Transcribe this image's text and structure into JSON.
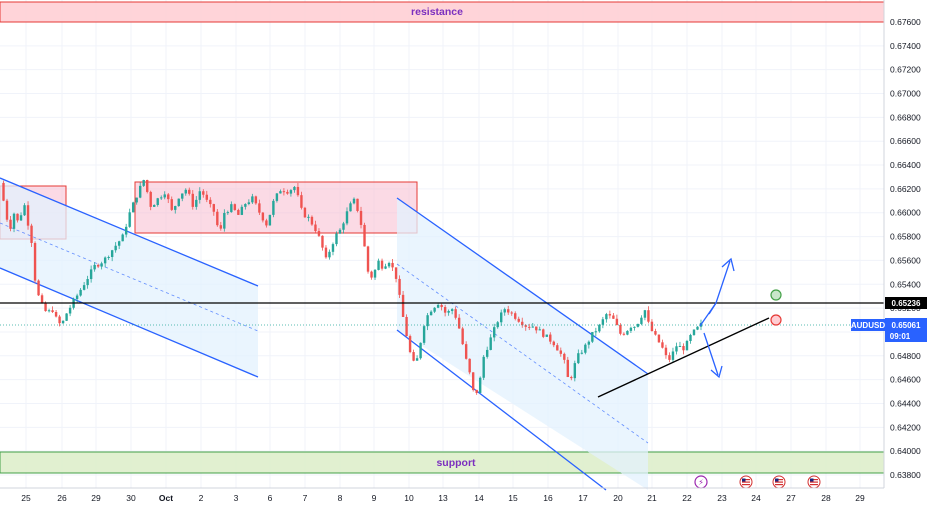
{
  "chart_data": {
    "type": "candlestick",
    "symbol": "AUDUSD",
    "y_ticks": [
      "0.67600",
      "0.67400",
      "0.67200",
      "0.67000",
      "0.66800",
      "0.66600",
      "0.66400",
      "0.66200",
      "0.66000",
      "0.65800",
      "0.65600",
      "0.65400",
      "0.65200",
      "0.65000",
      "0.64800",
      "0.64600",
      "0.64400",
      "0.64200",
      "0.64000",
      "0.63800"
    ],
    "ylim": [
      0.6375,
      0.6775
    ],
    "x_ticks": [
      "25",
      "26",
      "29",
      "30",
      "Oct",
      "2",
      "3",
      "6",
      "7",
      "8",
      "9",
      "10",
      "13",
      "14",
      "15",
      "16",
      "17",
      "20",
      "21",
      "22",
      "23",
      "24",
      "27",
      "28",
      "29"
    ],
    "price_path": [
      [
        24.7,
        0.6625
      ],
      [
        24.9,
        0.6605
      ],
      [
        25.1,
        0.6585
      ],
      [
        25.3,
        0.66
      ],
      [
        25.5,
        0.659
      ],
      [
        25.7,
        0.661
      ],
      [
        25.9,
        0.659
      ],
      [
        26.1,
        0.657
      ],
      [
        26.2,
        0.654
      ],
      [
        26.4,
        0.6525
      ],
      [
        26.7,
        0.6515
      ],
      [
        26.9,
        0.652
      ],
      [
        27.1,
        0.651
      ],
      [
        27.3,
        0.6505
      ],
      [
        27.5,
        0.6515
      ],
      [
        27.8,
        0.6525
      ],
      [
        28.1,
        0.6535
      ],
      [
        28.4,
        0.6545
      ],
      [
        28.7,
        0.6555
      ],
      [
        29.1,
        0.656
      ],
      [
        29.5,
        0.657
      ],
      [
        29.9,
        0.658
      ],
      [
        30.2,
        0.66
      ],
      [
        30.5,
        0.6615
      ],
      [
        30.8,
        0.6628
      ],
      [
        31.1,
        0.6605
      ],
      [
        31.4,
        0.6612
      ],
      [
        31.7,
        0.6618
      ],
      [
        32.0,
        0.66
      ],
      [
        32.3,
        0.6615
      ],
      [
        32.6,
        0.662
      ],
      [
        32.9,
        0.6605
      ],
      [
        33.2,
        0.662
      ],
      [
        33.5,
        0.6608
      ],
      [
        33.8,
        0.66
      ],
      [
        34.0,
        0.658
      ],
      [
        34.2,
        0.66
      ],
      [
        34.5,
        0.6605
      ],
      [
        34.8,
        0.6598
      ],
      [
        35.1,
        0.6608
      ],
      [
        35.4,
        0.6612
      ],
      [
        35.7,
        0.66
      ],
      [
        36.0,
        0.659
      ],
      [
        36.3,
        0.661
      ],
      [
        36.6,
        0.662
      ],
      [
        36.9,
        0.6618
      ],
      [
        37.2,
        0.6622
      ],
      [
        37.5,
        0.66
      ],
      [
        37.8,
        0.6595
      ],
      [
        38.1,
        0.6585
      ],
      [
        38.3,
        0.6575
      ],
      [
        38.5,
        0.656
      ],
      [
        38.7,
        0.657
      ],
      [
        38.9,
        0.658
      ],
      [
        39.1,
        0.6585
      ],
      [
        39.3,
        0.6595
      ],
      [
        39.5,
        0.6605
      ],
      [
        39.7,
        0.661
      ],
      [
        39.9,
        0.66
      ],
      [
        40.1,
        0.658
      ],
      [
        40.2,
        0.656
      ],
      [
        40.3,
        0.655
      ],
      [
        40.5,
        0.6545
      ],
      [
        40.7,
        0.656
      ],
      [
        40.9,
        0.6555
      ],
      [
        41.2,
        0.656
      ],
      [
        41.5,
        0.6545
      ],
      [
        41.7,
        0.652
      ],
      [
        41.9,
        0.65
      ],
      [
        42.1,
        0.648
      ],
      [
        42.3,
        0.647
      ],
      [
        42.5,
        0.649
      ],
      [
        42.7,
        0.651
      ],
      [
        43.0,
        0.652
      ],
      [
        43.3,
        0.6525
      ],
      [
        43.6,
        0.6515
      ],
      [
        43.9,
        0.652
      ],
      [
        44.2,
        0.65
      ],
      [
        44.4,
        0.648
      ],
      [
        44.6,
        0.6465
      ],
      [
        44.8,
        0.6445
      ],
      [
        45.0,
        0.6455
      ],
      [
        45.2,
        0.648
      ],
      [
        45.4,
        0.649
      ],
      [
        45.6,
        0.65
      ],
      [
        45.8,
        0.651
      ],
      [
        46.1,
        0.652
      ],
      [
        46.4,
        0.6515
      ],
      [
        46.7,
        0.651
      ],
      [
        47.0,
        0.6505
      ],
      [
        47.3,
        0.6505
      ],
      [
        47.6,
        0.65
      ],
      [
        47.9,
        0.6495
      ],
      [
        48.2,
        0.649
      ],
      [
        48.5,
        0.648
      ],
      [
        48.7,
        0.647
      ],
      [
        48.8,
        0.6455
      ],
      [
        49.0,
        0.647
      ],
      [
        49.2,
        0.648
      ],
      [
        49.5,
        0.6488
      ],
      [
        49.8,
        0.6498
      ],
      [
        50.1,
        0.6505
      ],
      [
        50.4,
        0.6515
      ],
      [
        50.7,
        0.651
      ],
      [
        51.0,
        0.6498
      ],
      [
        51.2,
        0.65
      ],
      [
        51.4,
        0.6505
      ],
      [
        51.6,
        0.6505
      ],
      [
        51.8,
        0.651
      ],
      [
        52.0,
        0.652
      ],
      [
        52.2,
        0.6505
      ],
      [
        52.4,
        0.6498
      ],
      [
        52.6,
        0.6492
      ],
      [
        52.8,
        0.6485
      ],
      [
        53.0,
        0.6475
      ],
      [
        53.2,
        0.6482
      ],
      [
        53.4,
        0.649
      ],
      [
        53.6,
        0.6485
      ],
      [
        53.8,
        0.649
      ],
      [
        54.0,
        0.6498
      ],
      [
        54.2,
        0.6502
      ],
      [
        54.4,
        0.6506
      ]
    ]
  },
  "zones": {
    "resistance_label": "resistance",
    "support_label": "support"
  },
  "price_tags": {
    "level_price": "0.65236",
    "current_symbol": "AUDUSD",
    "current_price": "0.65061",
    "countdown": "09:01"
  },
  "colors": {
    "candle_up": "#26a69a",
    "candle_down": "#ef5350",
    "channel": "#2962ff",
    "resistance_fill": "#ffcdd2",
    "resistance_border": "#e53935",
    "support_fill": "#dcedc8",
    "support_border": "#43a047",
    "zone_text": "#7b2fbf",
    "current_price_tag": "#2962ff"
  }
}
